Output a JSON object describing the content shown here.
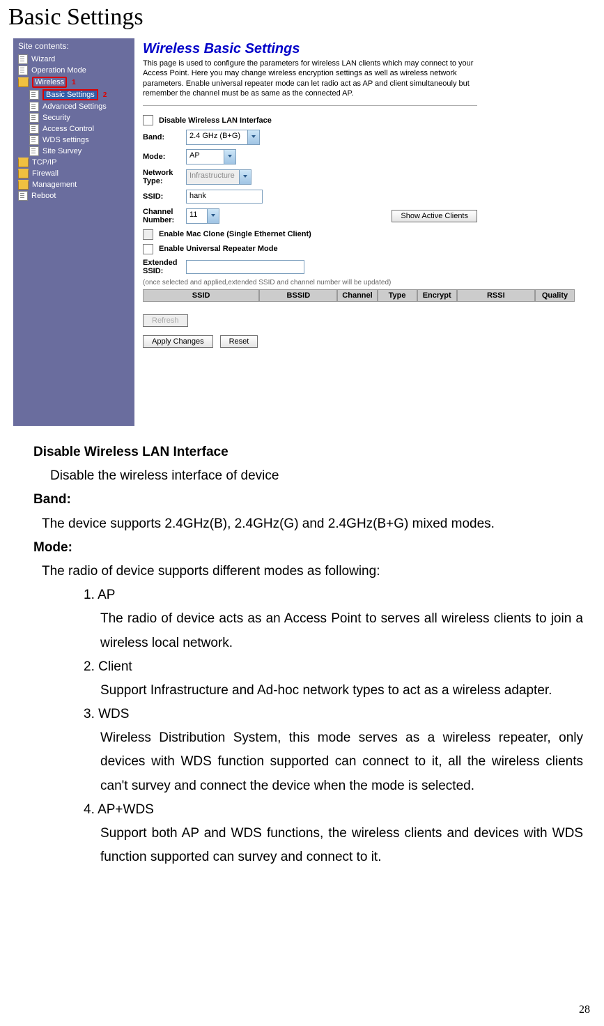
{
  "page_title": "Basic Settings",
  "page_number": "28",
  "sidebar": {
    "title": "Site contents:",
    "items": [
      {
        "type": "doc",
        "label": "Wizard",
        "child": false
      },
      {
        "type": "doc",
        "label": "Operation Mode",
        "child": false
      },
      {
        "type": "folder-open",
        "label": "Wireless",
        "child": false,
        "hl": true,
        "anno": "1"
      },
      {
        "type": "doc",
        "label": "Basic Settings",
        "child": true,
        "sel": true,
        "anno": "2"
      },
      {
        "type": "doc",
        "label": "Advanced Settings",
        "child": true
      },
      {
        "type": "doc",
        "label": "Security",
        "child": true
      },
      {
        "type": "doc",
        "label": "Access Control",
        "child": true
      },
      {
        "type": "doc",
        "label": "WDS settings",
        "child": true
      },
      {
        "type": "doc",
        "label": "Site Survey",
        "child": true
      },
      {
        "type": "folder",
        "label": "TCP/IP",
        "child": false
      },
      {
        "type": "folder",
        "label": "Firewall",
        "child": false
      },
      {
        "type": "folder",
        "label": "Management",
        "child": false
      },
      {
        "type": "doc",
        "label": "Reboot",
        "child": false
      }
    ],
    "bg": "#6a6d9e"
  },
  "main": {
    "heading": "Wireless Basic Settings",
    "desc": "This page is used to configure the parameters for wireless LAN clients which may connect to your Access Point. Here you may change wireless encryption settings as well as wireless network parameters. Enable universal repeater mode can let radio act as AP and client simultaneouly but remember the channel must be as same as the connected AP.",
    "disable_label": "Disable Wireless LAN Interface",
    "band": {
      "label": "Band:",
      "value": "2.4 GHz (B+G)"
    },
    "mode": {
      "label": "Mode:",
      "value": "AP"
    },
    "ntype": {
      "label": "Network Type:",
      "value": "Infrastructure"
    },
    "ssid": {
      "label": "SSID:",
      "value": "hank"
    },
    "channel": {
      "label": "Channel Number:",
      "value": "11",
      "btn": "Show Active Clients"
    },
    "mac_clone": "Enable Mac Clone (Single Ethernet Client)",
    "urm": "Enable Universal Repeater Mode",
    "ext_ssid": {
      "label": "Extended SSID:",
      "value": ""
    },
    "note": "(once selected and applied,extended SSID and channel number will be updated)",
    "cols": [
      "SSID",
      "BSSID",
      "Channel",
      "Type",
      "Encrypt",
      "RSSI",
      "Quality"
    ],
    "refresh": "Refresh",
    "apply": "Apply Changes",
    "reset": "Reset"
  },
  "doc": {
    "h1": "Disable Wireless LAN Interface",
    "h1_body": "Disable the wireless interface of device",
    "h2": "Band:",
    "h2_body": "The device supports 2.4GHz(B), 2.4GHz(G) and 2.4GHz(B+G) mixed modes.",
    "h3": "Mode:",
    "h3_body": "The radio of device supports different modes as following:",
    "m1": "1. AP",
    "m1b": "The radio of device acts as an Access Point to serves all wireless clients to join a wireless local network.",
    "m2": "2. Client",
    "m2b": "Support Infrastructure and Ad-hoc network types to act as a wireless adapter.",
    "m3": "3. WDS",
    "m3b": "Wireless Distribution System, this mode serves as a wireless repeater, only devices with WDS function supported can connect to it, all the wireless clients can't survey and connect the device when the mode is selected.",
    "m4": "4. AP+WDS",
    "m4b": "Support both AP and WDS functions, the wireless clients and devices with WDS function supported can survey and connect to it."
  }
}
